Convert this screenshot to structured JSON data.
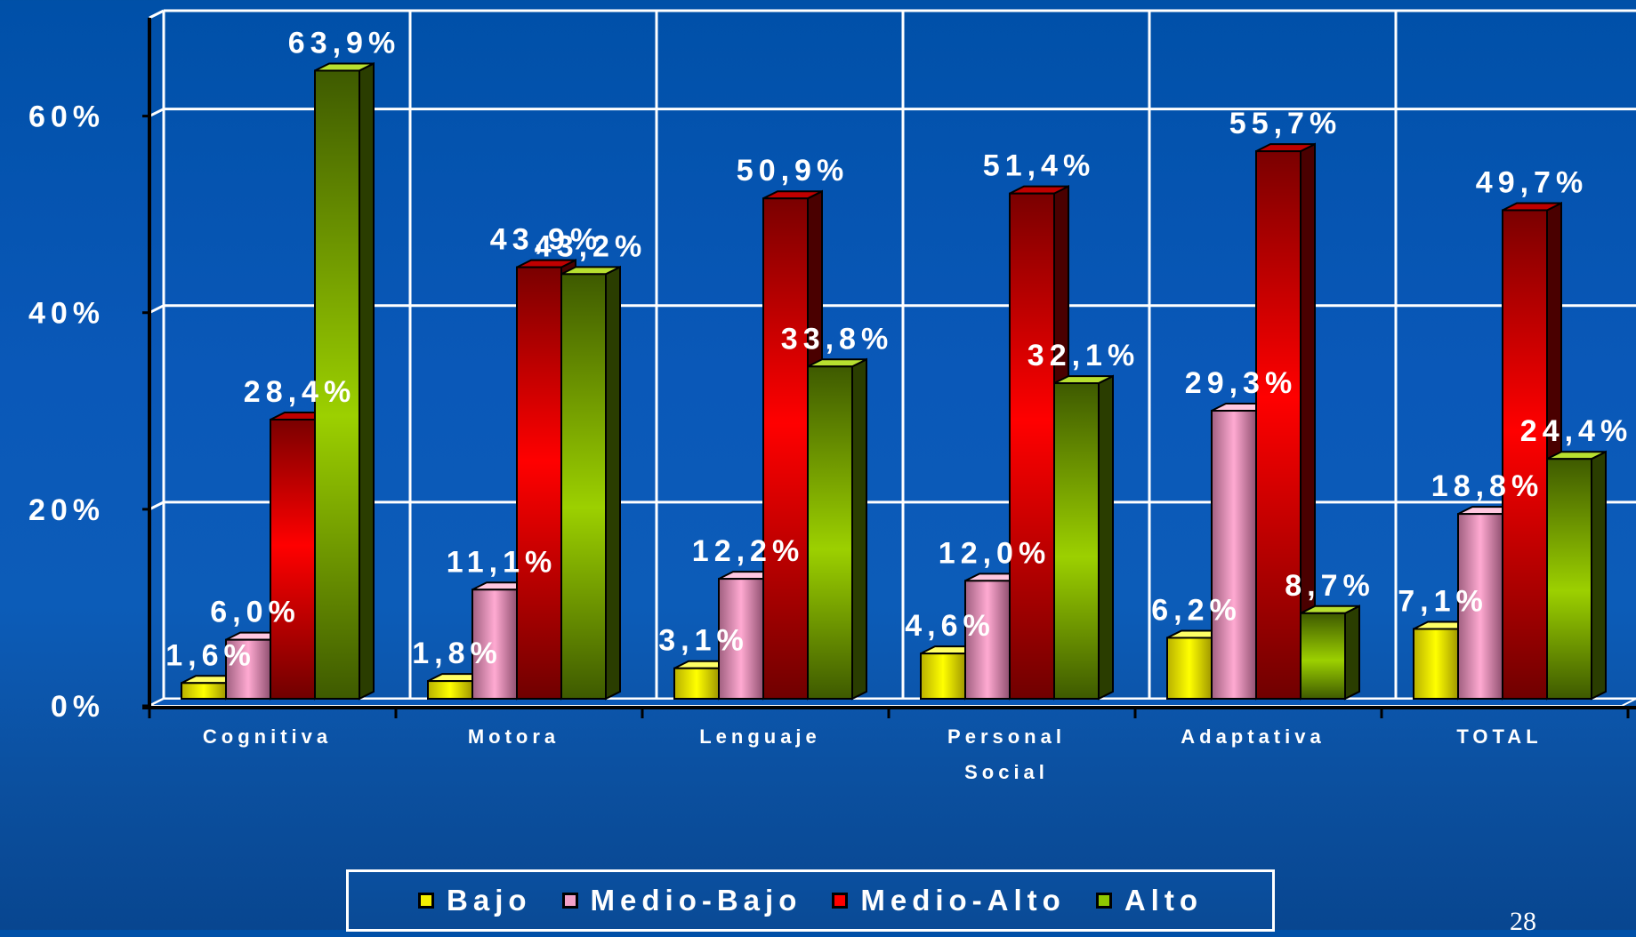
{
  "chart_data": {
    "type": "bar",
    "categories": [
      [
        "Cognitiva"
      ],
      [
        "Motora"
      ],
      [
        "Lenguaje"
      ],
      [
        "Personal",
        "Social"
      ],
      [
        "Adaptativa"
      ],
      [
        "TOTAL"
      ]
    ],
    "series": [
      {
        "name": "Bajo",
        "color": "#f5f000",
        "values": [
          1.6,
          1.8,
          3.1,
          4.6,
          6.2,
          7.1
        ],
        "labels": [
          "1,6%",
          "1,8%",
          "3,1%",
          "4,6%",
          "6,2%",
          "7,1%"
        ]
      },
      {
        "name": "Medio-Bajo",
        "color": "#f2a0c8",
        "values": [
          6.0,
          11.1,
          12.2,
          12.0,
          29.3,
          18.8
        ],
        "labels": [
          "6,0%",
          "11,1%",
          "12,2%",
          "12,0%",
          "29,3%",
          "18,8%"
        ]
      },
      {
        "name": "Medio-Alto",
        "color": "#ff0000",
        "values": [
          28.4,
          43.9,
          50.9,
          51.4,
          55.7,
          49.7
        ],
        "labels": [
          "28,4%",
          "43,9%",
          "50,9%",
          "51,4%",
          "55,7%",
          "49,7%"
        ]
      },
      {
        "name": "Alto",
        "color": "#8fc800",
        "values": [
          63.9,
          43.2,
          33.8,
          32.1,
          8.7,
          24.4
        ],
        "labels": [
          "63,9%",
          "43,2%",
          "33,8%",
          "32,1%",
          "8,7%",
          "24,4%"
        ]
      }
    ],
    "yticks": [
      0,
      20,
      40,
      60
    ],
    "ytick_labels": [
      "0%",
      "20%",
      "40%",
      "60%"
    ],
    "ylim": [
      0,
      70
    ],
    "grid": true,
    "legend_position": "bottom"
  },
  "page_number": "28"
}
